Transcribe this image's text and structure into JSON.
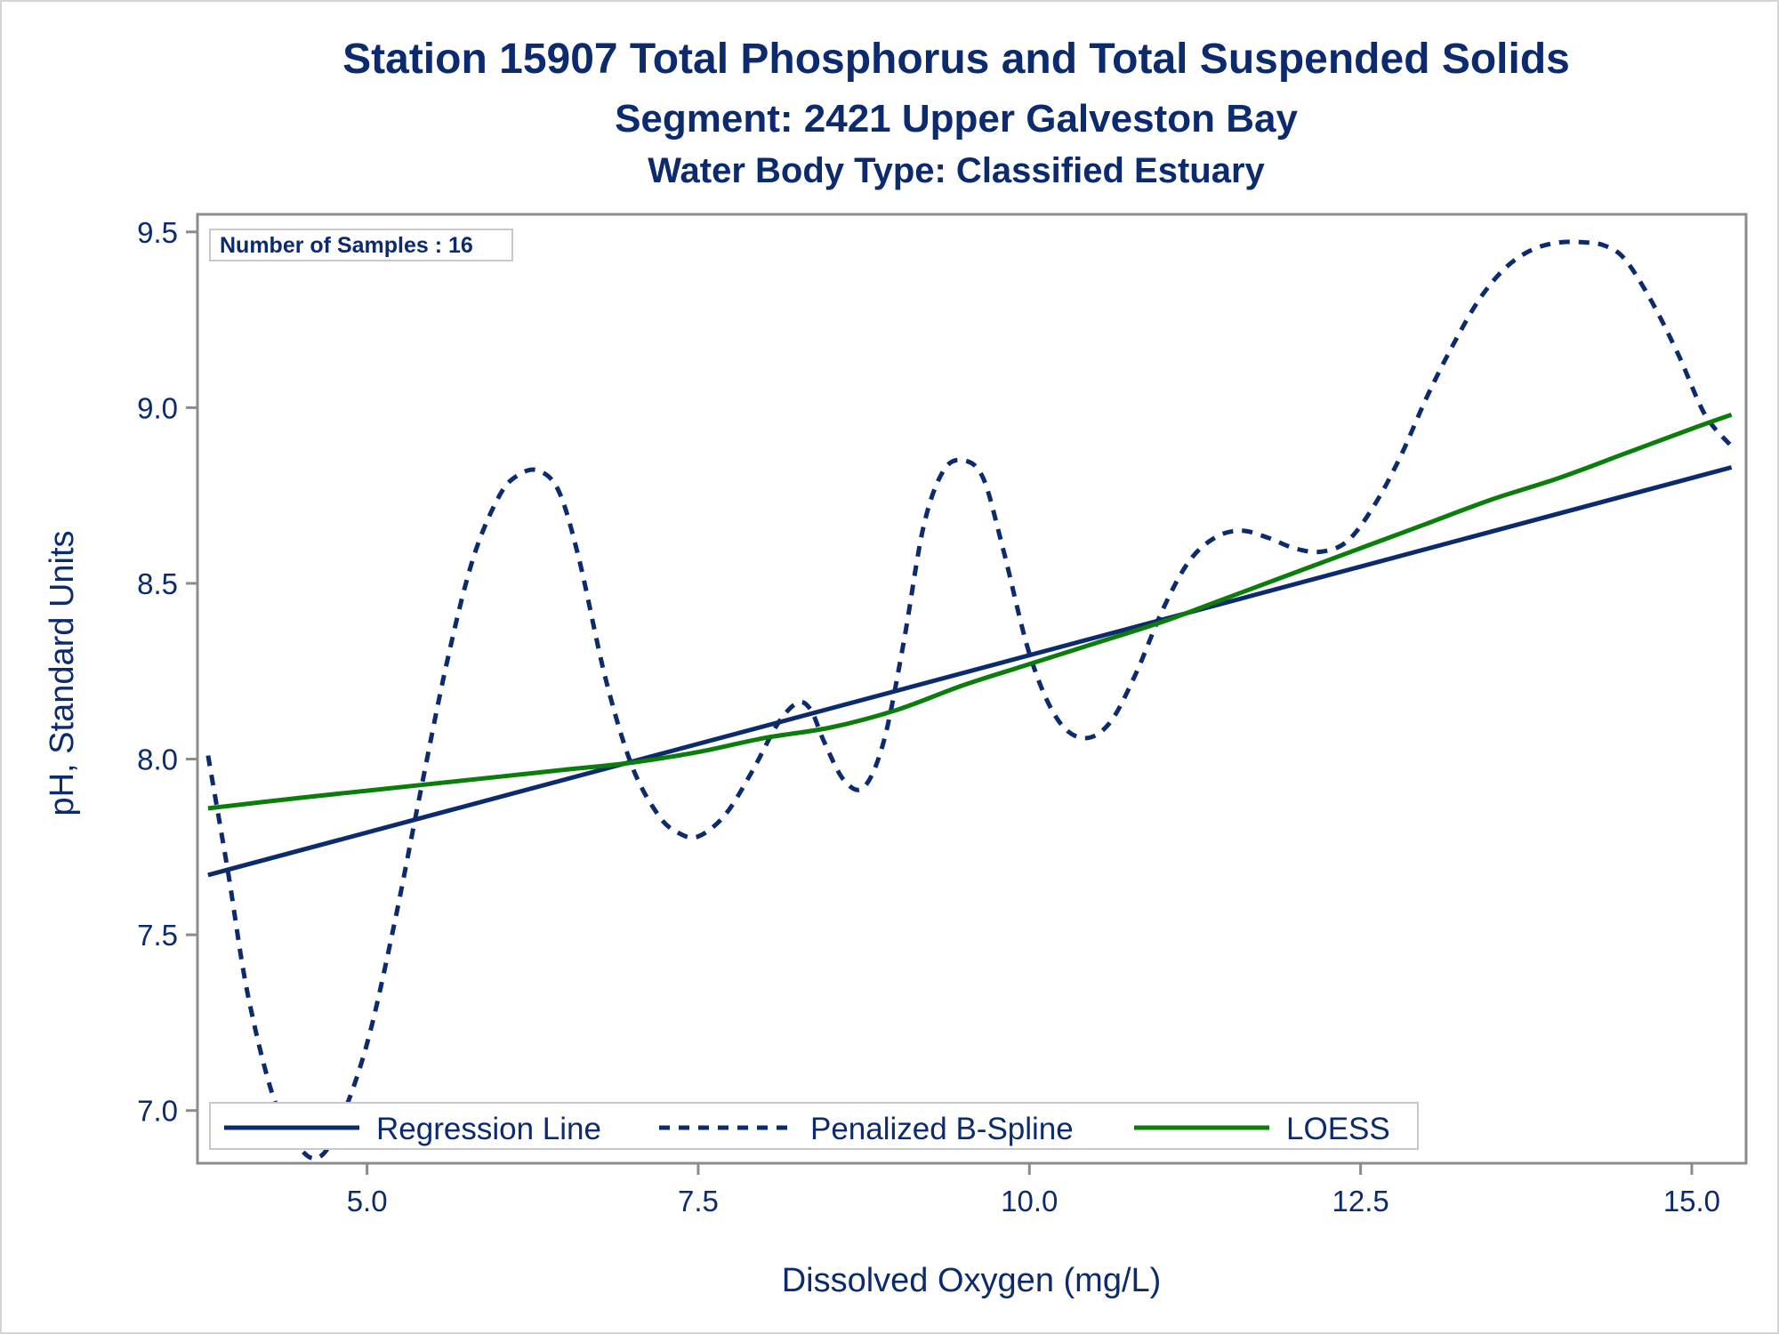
{
  "titles": {
    "line1": "Station 15907  Total Phosphorus and Total Suspended Solids",
    "line2": "Segment: 2421  Upper Galveston Bay",
    "line3": "Water Body Type: Classified Estuary"
  },
  "inset": {
    "label": "Number of Samples : 16"
  },
  "legend": {
    "regression": "Regression Line",
    "spline": "Penalized B-Spline",
    "loess": "LOESS"
  },
  "colors": {
    "navy": "#0c2a6e",
    "green": "#0a7d0a",
    "frame": "#8c8c8c"
  },
  "chart_data": {
    "type": "line",
    "xlabel": "Dissolved Oxygen (mg/L)",
    "ylabel": "pH, Standard Units",
    "xlim": [
      3.72,
      15.41
    ],
    "ylim": [
      6.85,
      9.55
    ],
    "xticks": [
      5.0,
      7.5,
      10.0,
      12.5,
      15.0
    ],
    "xtick_labels": [
      "5.0",
      "7.5",
      "10.0",
      "12.5",
      "15.0"
    ],
    "yticks": [
      7.0,
      7.5,
      8.0,
      8.5,
      9.0,
      9.5
    ],
    "ytick_labels": [
      "7.0",
      "7.5",
      "8.0",
      "8.5",
      "9.0",
      "9.5"
    ],
    "grid": false,
    "legend_position": "bottom-left-inside",
    "series": [
      {
        "name": "Regression Line",
        "style": "solid",
        "x": [
          3.8,
          15.3
        ],
        "y": [
          7.67,
          8.83
        ]
      },
      {
        "name": "Penalized B-Spline",
        "style": "dashed",
        "x": [
          3.8,
          3.95,
          4.1,
          4.3,
          4.5,
          4.65,
          4.8,
          5.0,
          5.2,
          5.4,
          5.6,
          5.8,
          6.0,
          6.15,
          6.3,
          6.45,
          6.6,
          6.8,
          7.0,
          7.2,
          7.35,
          7.5,
          7.7,
          7.9,
          8.1,
          8.25,
          8.35,
          8.45,
          8.6,
          8.75,
          8.9,
          9.05,
          9.2,
          9.35,
          9.5,
          9.65,
          9.8,
          10.0,
          10.2,
          10.4,
          10.6,
          10.8,
          11.0,
          11.2,
          11.4,
          11.6,
          11.8,
          12.0,
          12.2,
          12.4,
          12.6,
          12.8,
          13.0,
          13.2,
          13.4,
          13.6,
          13.8,
          14.0,
          14.2,
          14.35,
          14.5,
          14.7,
          14.9,
          15.1,
          15.3
        ],
        "y": [
          8.01,
          7.68,
          7.33,
          7.03,
          6.89,
          6.87,
          6.97,
          7.19,
          7.52,
          7.9,
          8.27,
          8.57,
          8.75,
          8.81,
          8.82,
          8.76,
          8.57,
          8.23,
          7.98,
          7.84,
          7.79,
          7.78,
          7.84,
          7.96,
          8.1,
          8.16,
          8.14,
          8.05,
          7.94,
          7.92,
          8.05,
          8.33,
          8.66,
          8.82,
          8.85,
          8.8,
          8.6,
          8.3,
          8.12,
          8.06,
          8.1,
          8.24,
          8.42,
          8.56,
          8.63,
          8.65,
          8.63,
          8.6,
          8.59,
          8.62,
          8.72,
          8.86,
          9.03,
          9.18,
          9.31,
          9.4,
          9.45,
          9.47,
          9.47,
          9.46,
          9.42,
          9.3,
          9.15,
          8.98,
          8.89
        ]
      },
      {
        "name": "LOESS",
        "style": "solid",
        "x": [
          3.8,
          4.5,
          5.0,
          5.5,
          6.0,
          6.5,
          7.0,
          7.5,
          8.0,
          8.5,
          9.0,
          9.5,
          10.0,
          10.5,
          11.0,
          11.5,
          12.0,
          12.5,
          13.0,
          13.5,
          14.0,
          14.5,
          15.0,
          15.3
        ],
        "y": [
          7.86,
          7.89,
          7.91,
          7.93,
          7.95,
          7.97,
          7.99,
          8.02,
          8.06,
          8.09,
          8.14,
          8.21,
          8.27,
          8.33,
          8.39,
          8.46,
          8.53,
          8.6,
          8.67,
          8.74,
          8.8,
          8.87,
          8.94,
          8.98
        ]
      }
    ]
  }
}
